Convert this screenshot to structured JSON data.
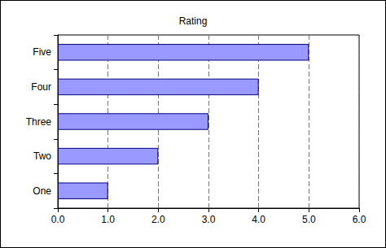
{
  "chart_data": {
    "type": "bar",
    "title": "Rating",
    "orientation": "horizontal",
    "categories": [
      "One",
      "Two",
      "Three",
      "Four",
      "Five"
    ],
    "values": [
      1,
      2,
      3,
      4,
      5
    ],
    "color": "#9999ff",
    "xlim": [
      0,
      6
    ],
    "xticks": [
      {
        "value": 0,
        "label": "0.0"
      },
      {
        "value": 1,
        "label": "1.0"
      },
      {
        "value": 2,
        "label": "2.0"
      },
      {
        "value": 3,
        "label": "3.0"
      },
      {
        "value": 4,
        "label": "4.0"
      },
      {
        "value": 5,
        "label": "5.0"
      },
      {
        "value": 6,
        "label": "6.0"
      }
    ],
    "grid": true
  }
}
